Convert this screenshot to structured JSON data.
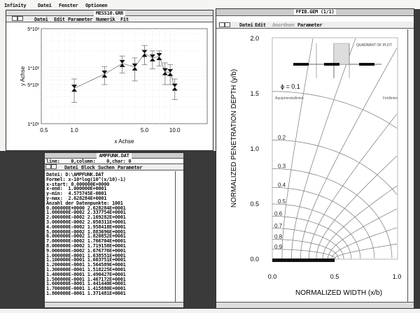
{
  "top_menu": {
    "items": [
      "Infinity",
      "Datei",
      "Fenster",
      "Optionen"
    ]
  },
  "plot_window": {
    "title": "MESS10.GRR",
    "menu": [
      "Datei",
      "Edit",
      "Parameter",
      "Numerik",
      "Fit"
    ]
  },
  "text_window": {
    "title": "AMPFUNK.DAT",
    "status": "line:    0,column:    0,char: 0",
    "menu": [
      "Datei",
      "Block",
      "Suchen",
      "Parameter"
    ],
    "header_lines": [
      "Datei: D:\\AMPFUNK.DAT",
      "Formel: x-10*log(10^(x/10)-1)",
      "x-start: 0.000000E+0000",
      "x-end:  1.000000E+0001",
      "y-min:  4.575745E-0001",
      "y-max:  2.628284E+0001",
      "Anzahl der Datenpunkte: 1001"
    ],
    "rows": [
      "0.000000E+0000 2.628284E+0001",
      "1.000000E-0002 2.337754E+0001",
      "2.000000E-0002 2.169282E+0001",
      "3.000000E-0002 2.050311E+0001",
      "4.000000E-0002 1.958418E+0001",
      "5.000000E-0002 1.883696E+0001",
      "6.000000E-0002 1.820852E+0001",
      "7.000000E-0002 1.766704E+0001",
      "8.000000E-0002 1.719158E+0001",
      "9.000000E-0002 1.676776E+0001",
      "1.000000E-0001 1.638551E+0001",
      "1.100000E-0001 1.603751E+0001",
      "1.200000E-0001 1.564589E+0001",
      "1.300000E-0001 1.518225E+0001",
      "1.400000E-0001 1.490427E+0001",
      "1.500000E-0001 1.467172E+0001",
      "1.600000E-0001 1.441440E+0001",
      "1.700000E-0001 1.415880E+0001",
      "1.800000E-0001 1.371481E+0001"
    ]
  },
  "contour_window": {
    "title": "FFIB.GEM (1/1)",
    "menu": [
      "Datei",
      "Edit",
      "Anordnen",
      "Parameter"
    ]
  },
  "chart_data": [
    {
      "type": "scatter",
      "xlabel": "x Achse",
      "ylabel": "y Achse",
      "x_scale": "log",
      "y_scale": "log",
      "xlim": [
        0.47,
        21
      ],
      "ylim": [
        10,
        500
      ],
      "x_ticks": [
        "0.5",
        "1.0",
        "5.0",
        "10.0"
      ],
      "y_ticks": [
        "1*10¹",
        "5*10¹",
        "1*10²",
        "5*10²"
      ],
      "grid": true,
      "x": [
        1,
        2,
        3,
        4,
        5,
        6,
        7,
        8,
        9,
        10
      ],
      "y": [
        43,
        77,
        119,
        103,
        180,
        150,
        158,
        85,
        82,
        45
      ],
      "err_high": [
        63,
        105,
        162,
        150,
        250,
        200,
        200,
        122,
        113,
        63
      ],
      "err_low": [
        24,
        50,
        80,
        58,
        113,
        95,
        108,
        50,
        50,
        27
      ],
      "line_color": "#777777",
      "marker_color": "#111111"
    },
    {
      "type": "line",
      "xlabel": "NORMALIZED WIDTH  (x/b)",
      "ylabel": "NORMALIZED PENETRATION DEPTH (y/b)",
      "xlim": [
        0,
        1
      ],
      "ylim": [
        0,
        2
      ],
      "x_ticks": [
        "0.0",
        "0.5",
        "1.0"
      ],
      "y_ticks": [
        "0.0",
        "0.5",
        "1.0",
        "1.5",
        "2.0"
      ],
      "phi_label": "ϕ = 0.1",
      "equipotential_levels": [
        "0.2",
        "0.3",
        "0.4",
        "0.5",
        "0.6",
        "0.7",
        "0.8",
        "0.9"
      ],
      "equipotential_depth_at_x0": [
        1.52,
        1.08,
        0.82,
        0.65,
        0.5,
        0.39,
        0.28,
        0.18,
        0.09
      ],
      "electrode_halfwidth": 0.5,
      "annotations": [
        "Äquipotentiallinien",
        "Feldlinien",
        "QUADRANT OF PLOT"
      ]
    }
  ]
}
